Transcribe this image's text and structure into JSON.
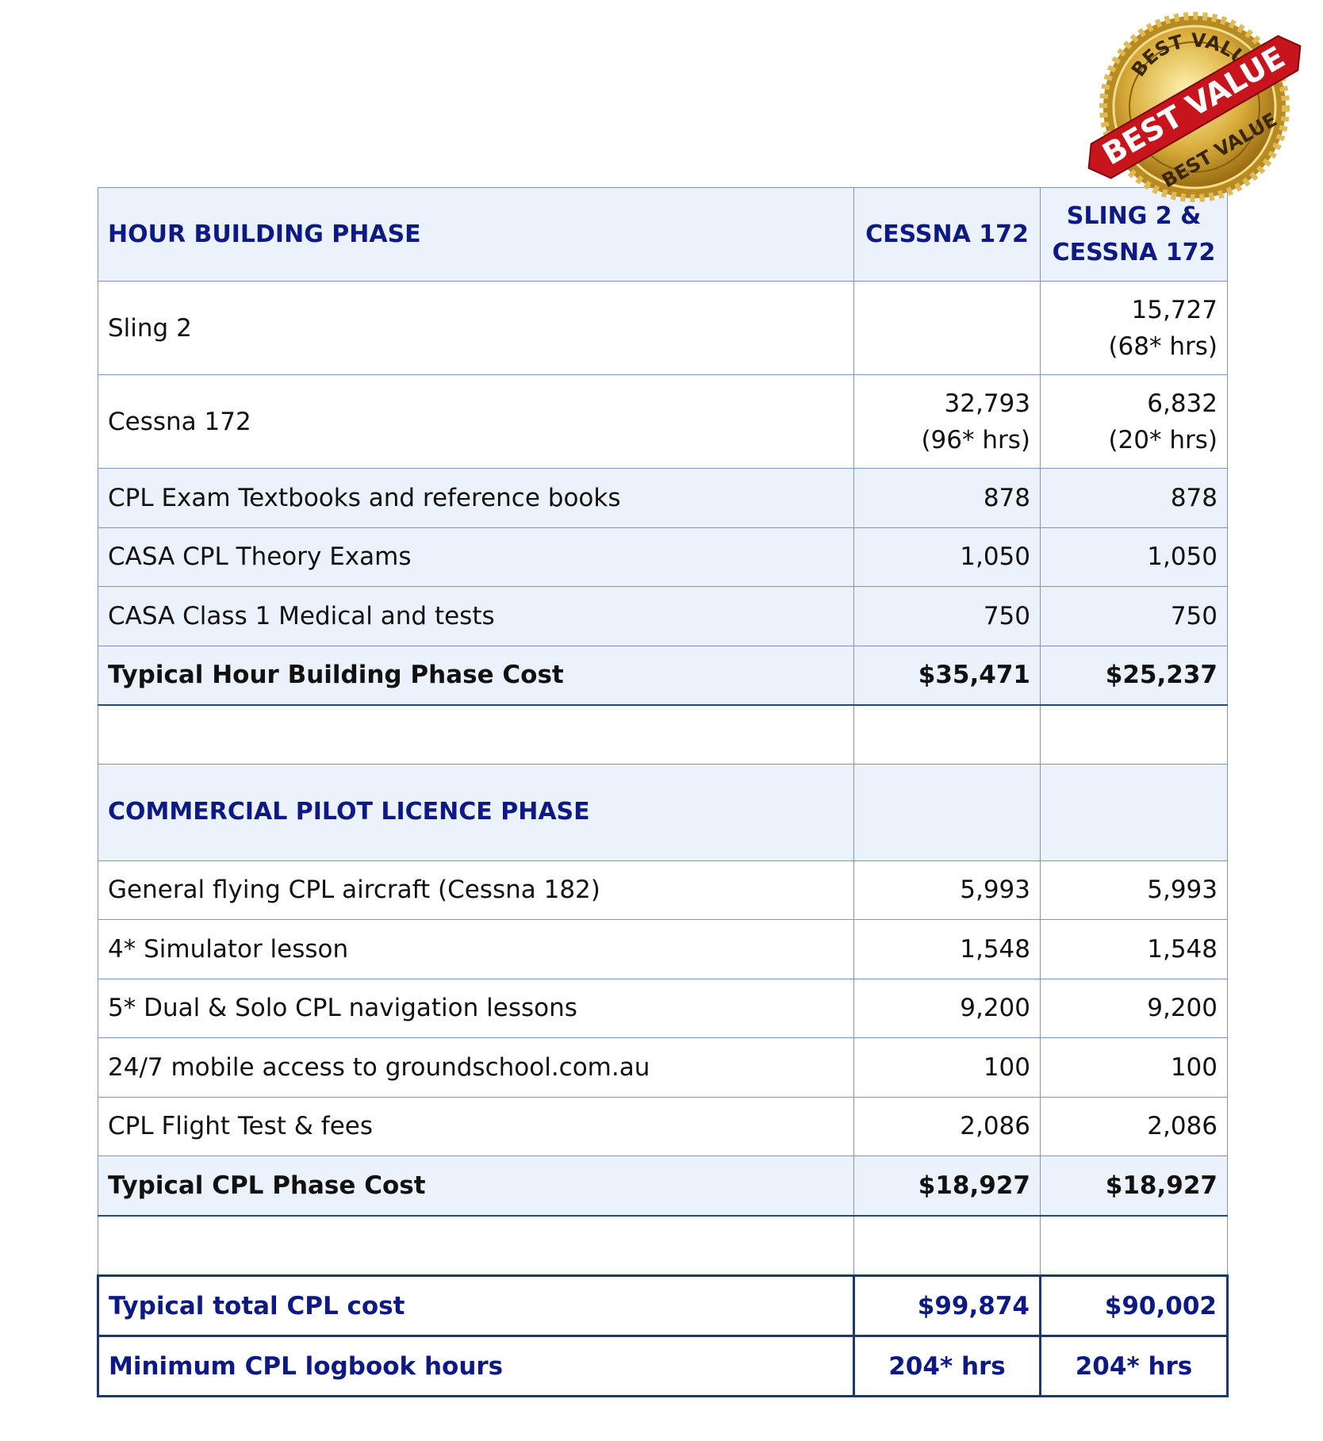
{
  "badge": {
    "top": "BEST VALUE",
    "ribbon": "BEST VALUE",
    "bottom": "BEST VALUE"
  },
  "hour_building": {
    "header": [
      "HOUR BUILDING PHASE",
      "CESSNA 172",
      "SLING 2 & CESSNA 172"
    ],
    "rows": [
      [
        "Sling 2",
        "",
        "15,727\n(68* hrs)"
      ],
      [
        "Cessna 172",
        "32,793\n(96* hrs)",
        "6,832\n(20* hrs)"
      ],
      [
        "CPL Exam Textbooks and reference books",
        "878",
        "878"
      ],
      [
        "CASA CPL Theory Exams",
        "1,050",
        "1,050"
      ],
      [
        "CASA Class 1 Medical and tests",
        "750",
        "750"
      ]
    ],
    "total": [
      "Typical Hour Building Phase Cost",
      "$35,471",
      "$25,237"
    ]
  },
  "cpl": {
    "header": [
      "COMMERCIAL PILOT LICENCE PHASE"
    ],
    "rows": [
      [
        "General flying CPL aircraft (Cessna 182)",
        "5,993",
        "5,993"
      ],
      [
        "4* Simulator lesson",
        "1,548",
        "1,548"
      ],
      [
        "5* Dual & Solo CPL navigation lessons",
        "9,200",
        "9,200"
      ],
      [
        "24/7 mobile access to groundschool.com.au",
        "100",
        "100"
      ],
      [
        "CPL Flight Test & fees",
        "2,086",
        "2,086"
      ]
    ],
    "total": [
      "Typical CPL Phase Cost",
      "$18,927",
      "$18,927"
    ]
  },
  "summary": [
    [
      "Typical total CPL cost",
      "$99,874",
      "$90,002"
    ],
    [
      "Minimum CPL logbook hours",
      "204* hrs",
      "204* hrs"
    ]
  ]
}
